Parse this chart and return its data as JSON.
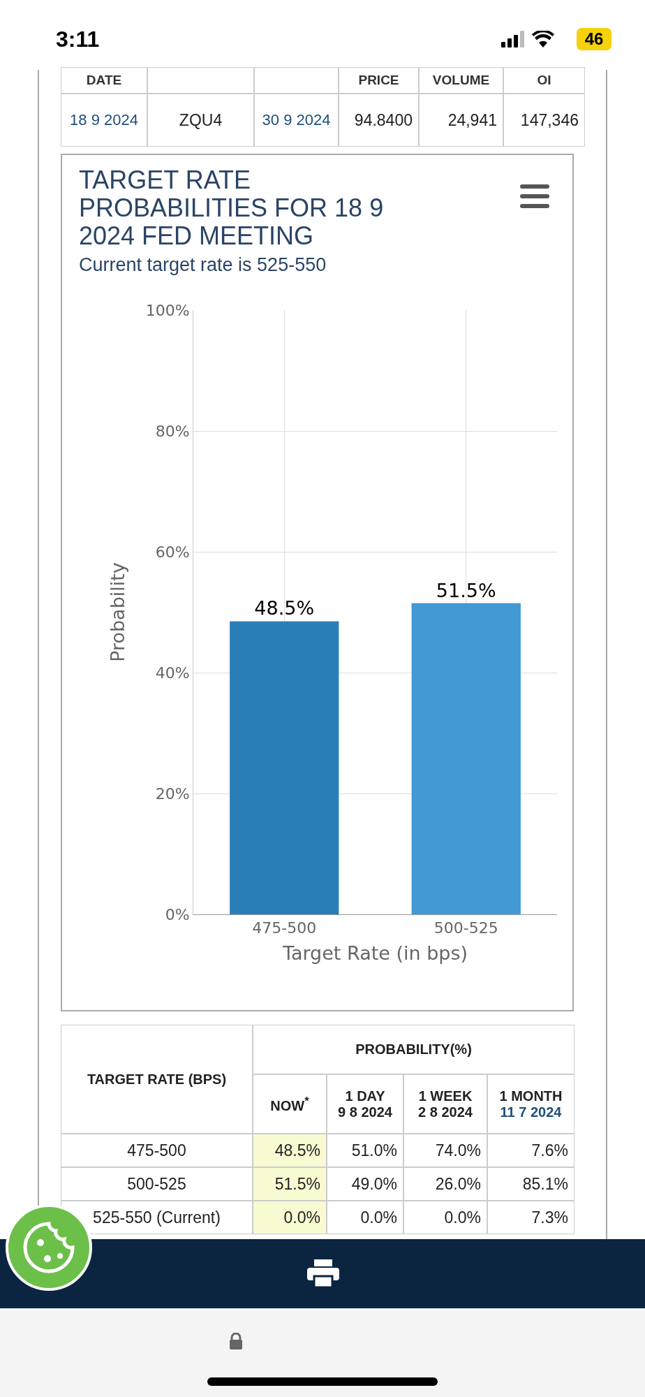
{
  "chart_data": [
    {
      "type": "other",
      "annotations": [
        "3:11",
        "46",
        "DATE",
        "PRICE",
        "VOLUME",
        "OI",
        "18 9 2024",
        "ZQU4",
        "30 9 2024",
        "94.8400",
        "24,941",
        "147,346"
      ]
    },
    {
      "type": "bar",
      "title": "TARGET RATE PROBABILITIES FOR 18 9 2024 FED MEETING",
      "subtitle": "Current target rate is 525-550",
      "xlabel": "Target Rate (in bps)",
      "ylabel": "Probability",
      "categories": [
        "475-500",
        "500-525"
      ],
      "values": [
        48.5,
        51.5
      ],
      "colors": [
        "#2a7fb8",
        "#4299d3"
      ],
      "value_labels": [
        "48.5%",
        "51.5%"
      ],
      "ylim": [
        0,
        100
      ],
      "yticks": [
        {
          "value": 0,
          "label": "0%"
        },
        {
          "value": 20,
          "label": "20%"
        },
        {
          "value": 40,
          "label": "40%"
        },
        {
          "value": 60,
          "label": "60%"
        },
        {
          "value": 80,
          "label": "80%"
        },
        {
          "value": 100,
          "label": "100%"
        }
      ],
      "grid": true,
      "legend": false
    },
    {
      "type": "other",
      "annotations": [
        "TARGET RATE (BPS)",
        "PROBABILITY(%)",
        "NOW$^{*}$",
        "1 DAY",
        "9 8 2024",
        "1 WEEK",
        "2 8 2024",
        "1 MONTH",
        "11 7 2024",
        "475-500",
        "48.5%",
        "51.0%",
        "74.0%",
        "7.6%",
        "500-525",
        "51.5%",
        "49.0%",
        "26.0%",
        "85.1%",
        "525-550 (Current)",
        "0.0%",
        "0.0%",
        "0.0%",
        "7.3%"
      ]
    }
  ]
}
